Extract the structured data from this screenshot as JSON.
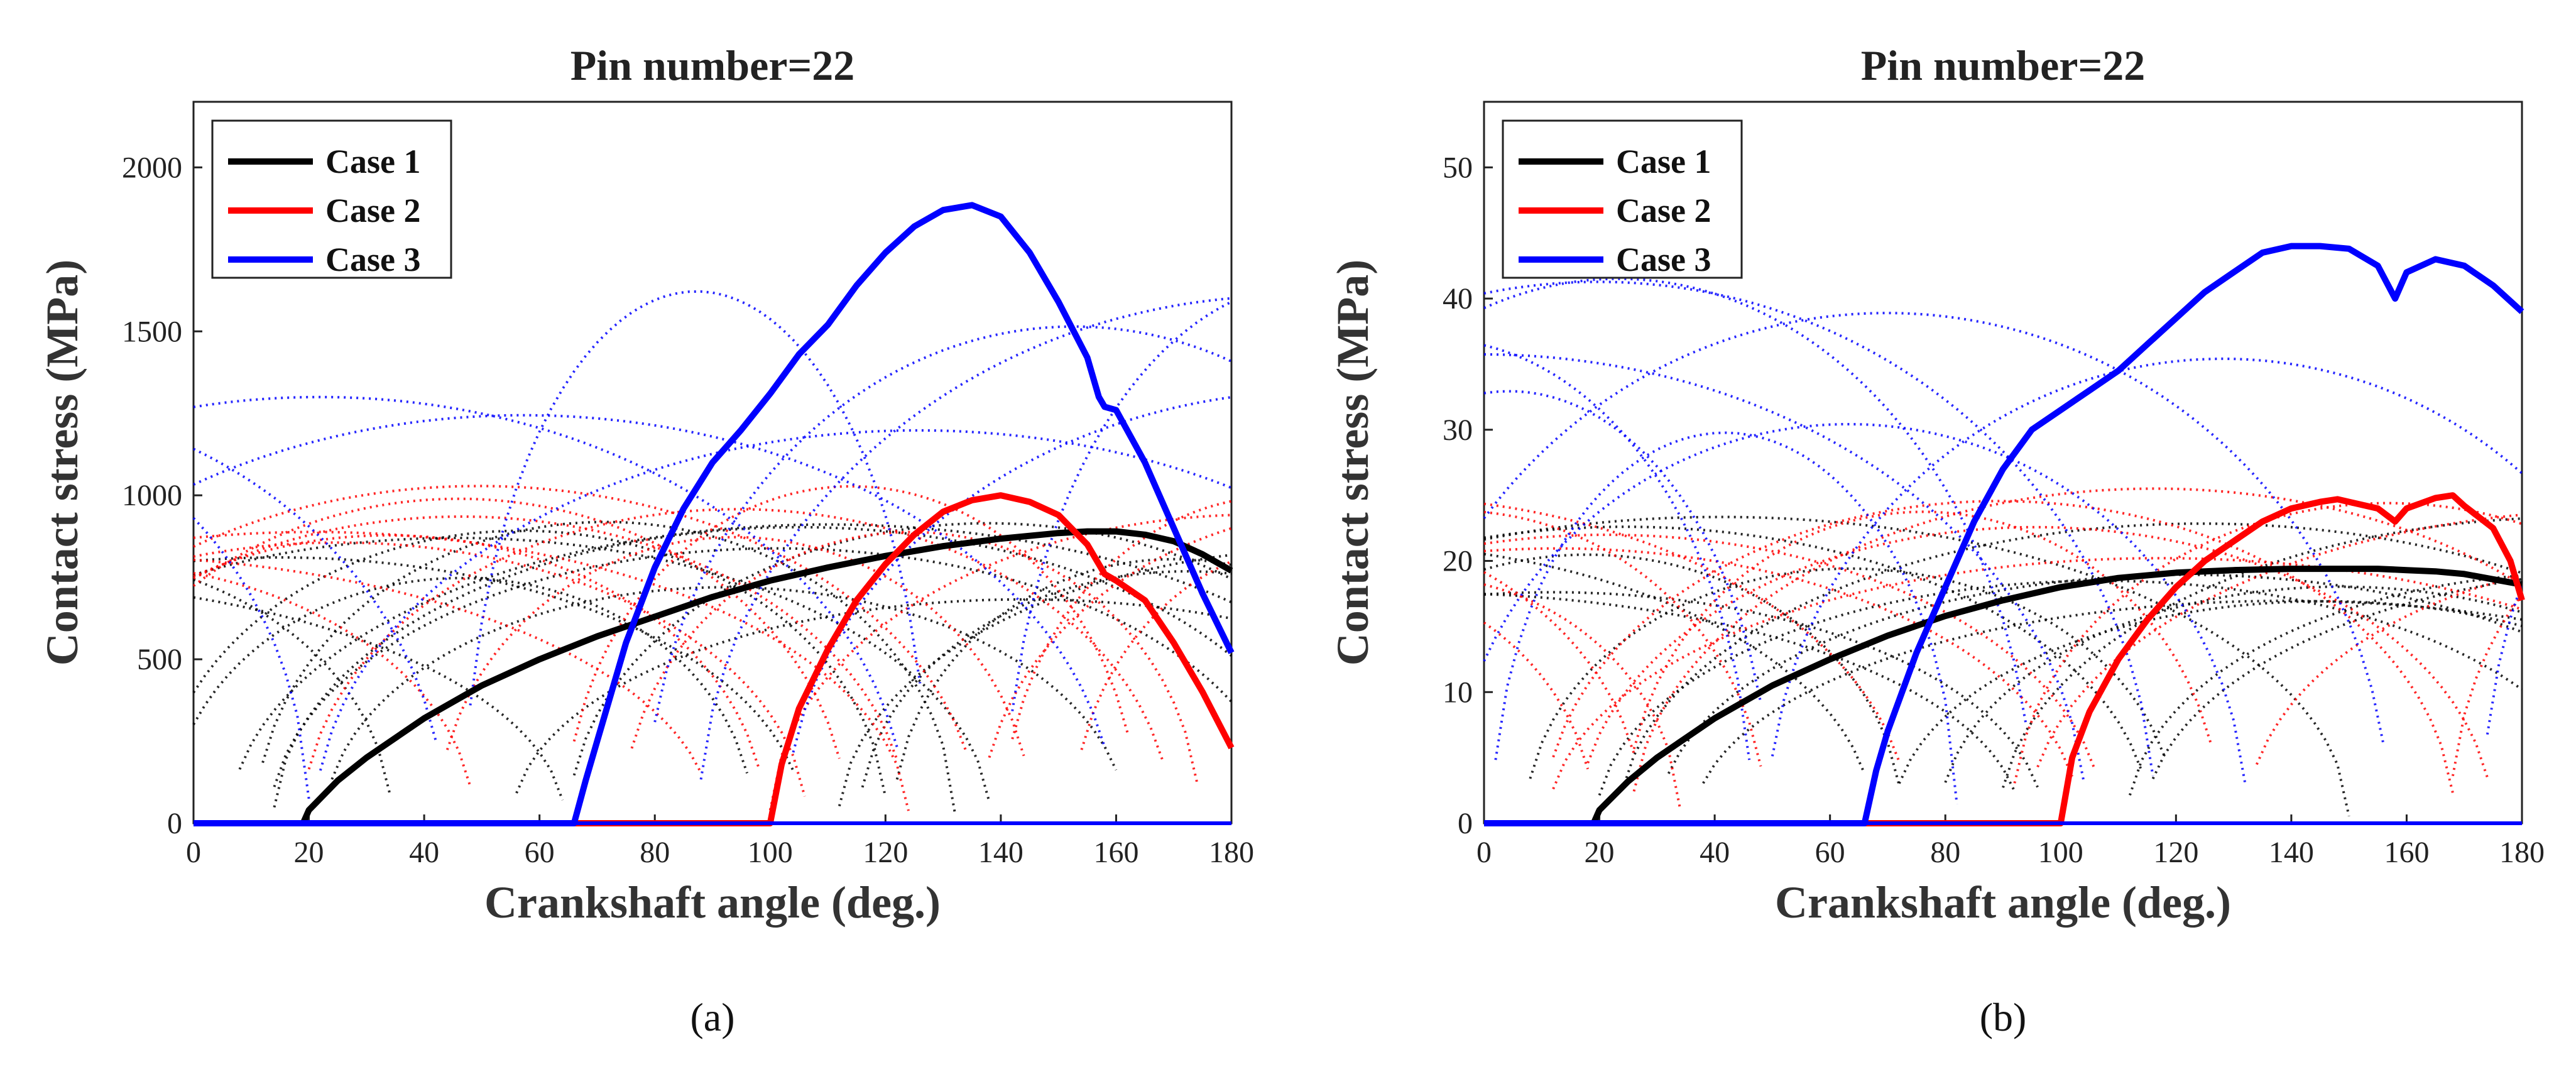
{
  "chart_data": [
    {
      "type": "line",
      "title": "Pin number=22",
      "xlabel": "Crankshaft angle (deg.)",
      "ylabel": "Contact stress (MPa)",
      "xlim": [
        0,
        180
      ],
      "ylim": [
        0,
        2200
      ],
      "xticks": [
        0,
        20,
        40,
        60,
        80,
        100,
        120,
        140,
        160,
        180
      ],
      "yticks": [
        0,
        500,
        1000,
        1500,
        2000
      ],
      "caption": "(a)",
      "legend": [
        "Case 1",
        "Case 2",
        "Case 3"
      ],
      "legend_position": "top-left",
      "series": [
        {
          "name": "Case 1",
          "color": "#000000",
          "x": [
            0,
            19,
            20,
            25,
            30,
            40,
            50,
            60,
            70,
            80,
            90,
            100,
            110,
            120,
            130,
            140,
            150,
            155,
            160,
            165,
            170,
            175,
            180
          ],
          "y": [
            0,
            0,
            40,
            130,
            200,
            320,
            420,
            500,
            570,
            630,
            690,
            740,
            780,
            815,
            845,
            868,
            885,
            890,
            890,
            880,
            860,
            820,
            770
          ]
        },
        {
          "name": "Case 2",
          "color": "#ff0000",
          "x": [
            0,
            100,
            102,
            105,
            110,
            115,
            120,
            125,
            130,
            135,
            140,
            145,
            150,
            155,
            158,
            160,
            165,
            170,
            175,
            180
          ],
          "y": [
            0,
            0,
            180,
            350,
            530,
            680,
            790,
            880,
            950,
            985,
            1000,
            980,
            940,
            850,
            760,
            740,
            680,
            550,
            400,
            230
          ]
        },
        {
          "name": "Case 3",
          "color": "#0000ff",
          "x": [
            0,
            66,
            68,
            70,
            75,
            80,
            85,
            90,
            95,
            100,
            105,
            110,
            115,
            120,
            125,
            130,
            135,
            140,
            145,
            150,
            155,
            157,
            158,
            160,
            165,
            170,
            175,
            180
          ],
          "y": [
            0,
            0,
            130,
            250,
            550,
            780,
            960,
            1100,
            1200,
            1310,
            1430,
            1520,
            1640,
            1740,
            1820,
            1870,
            1885,
            1850,
            1740,
            1590,
            1420,
            1300,
            1270,
            1260,
            1100,
            900,
            700,
            520
          ]
        }
      ]
    },
    {
      "type": "line",
      "title": "Pin number=22",
      "xlabel": "Crankshaft angle (deg.)",
      "ylabel": "Contact stress (MPa)",
      "xlim": [
        0,
        180
      ],
      "ylim": [
        0,
        55
      ],
      "xticks": [
        0,
        20,
        40,
        60,
        80,
        100,
        120,
        140,
        160,
        180
      ],
      "yticks": [
        0,
        10,
        20,
        30,
        40,
        50
      ],
      "caption": "(b)",
      "legend": [
        "Case 1",
        "Case 2",
        "Case 3"
      ],
      "legend_position": "top-left",
      "series": [
        {
          "name": "Case 1",
          "color": "#000000",
          "x": [
            0,
            19,
            20,
            25,
            30,
            40,
            50,
            60,
            70,
            80,
            90,
            100,
            110,
            120,
            130,
            140,
            150,
            155,
            160,
            165,
            170,
            175,
            180
          ],
          "y": [
            0,
            0,
            1,
            3.2,
            5,
            8,
            10.5,
            12.5,
            14.3,
            15.8,
            17,
            18,
            18.7,
            19.1,
            19.3,
            19.4,
            19.4,
            19.4,
            19.3,
            19.2,
            19,
            18.6,
            18.2
          ]
        },
        {
          "name": "Case 2",
          "color": "#ff0000",
          "x": [
            0,
            100,
            102,
            105,
            110,
            115,
            120,
            125,
            130,
            135,
            140,
            145,
            148,
            150,
            155,
            158,
            160,
            165,
            168,
            170,
            175,
            178,
            180
          ],
          "y": [
            0,
            0,
            5,
            8.5,
            12.5,
            15.5,
            18,
            20,
            21.5,
            23,
            24,
            24.5,
            24.7,
            24.5,
            24,
            23,
            24,
            24.8,
            25,
            24.2,
            22.5,
            20,
            17
          ]
        },
        {
          "name": "Case 3",
          "color": "#0000ff",
          "x": [
            0,
            66,
            68,
            70,
            75,
            80,
            85,
            90,
            95,
            100,
            105,
            110,
            115,
            120,
            125,
            130,
            135,
            140,
            145,
            150,
            155,
            158,
            160,
            165,
            170,
            175,
            180
          ],
          "y": [
            0,
            0,
            4,
            7,
            13,
            18,
            23,
            27,
            30,
            31.5,
            33,
            34.5,
            36.5,
            38.5,
            40.5,
            42,
            43.5,
            44,
            44,
            43.8,
            42.5,
            40,
            42,
            43,
            42.5,
            41,
            39
          ]
        }
      ]
    }
  ]
}
